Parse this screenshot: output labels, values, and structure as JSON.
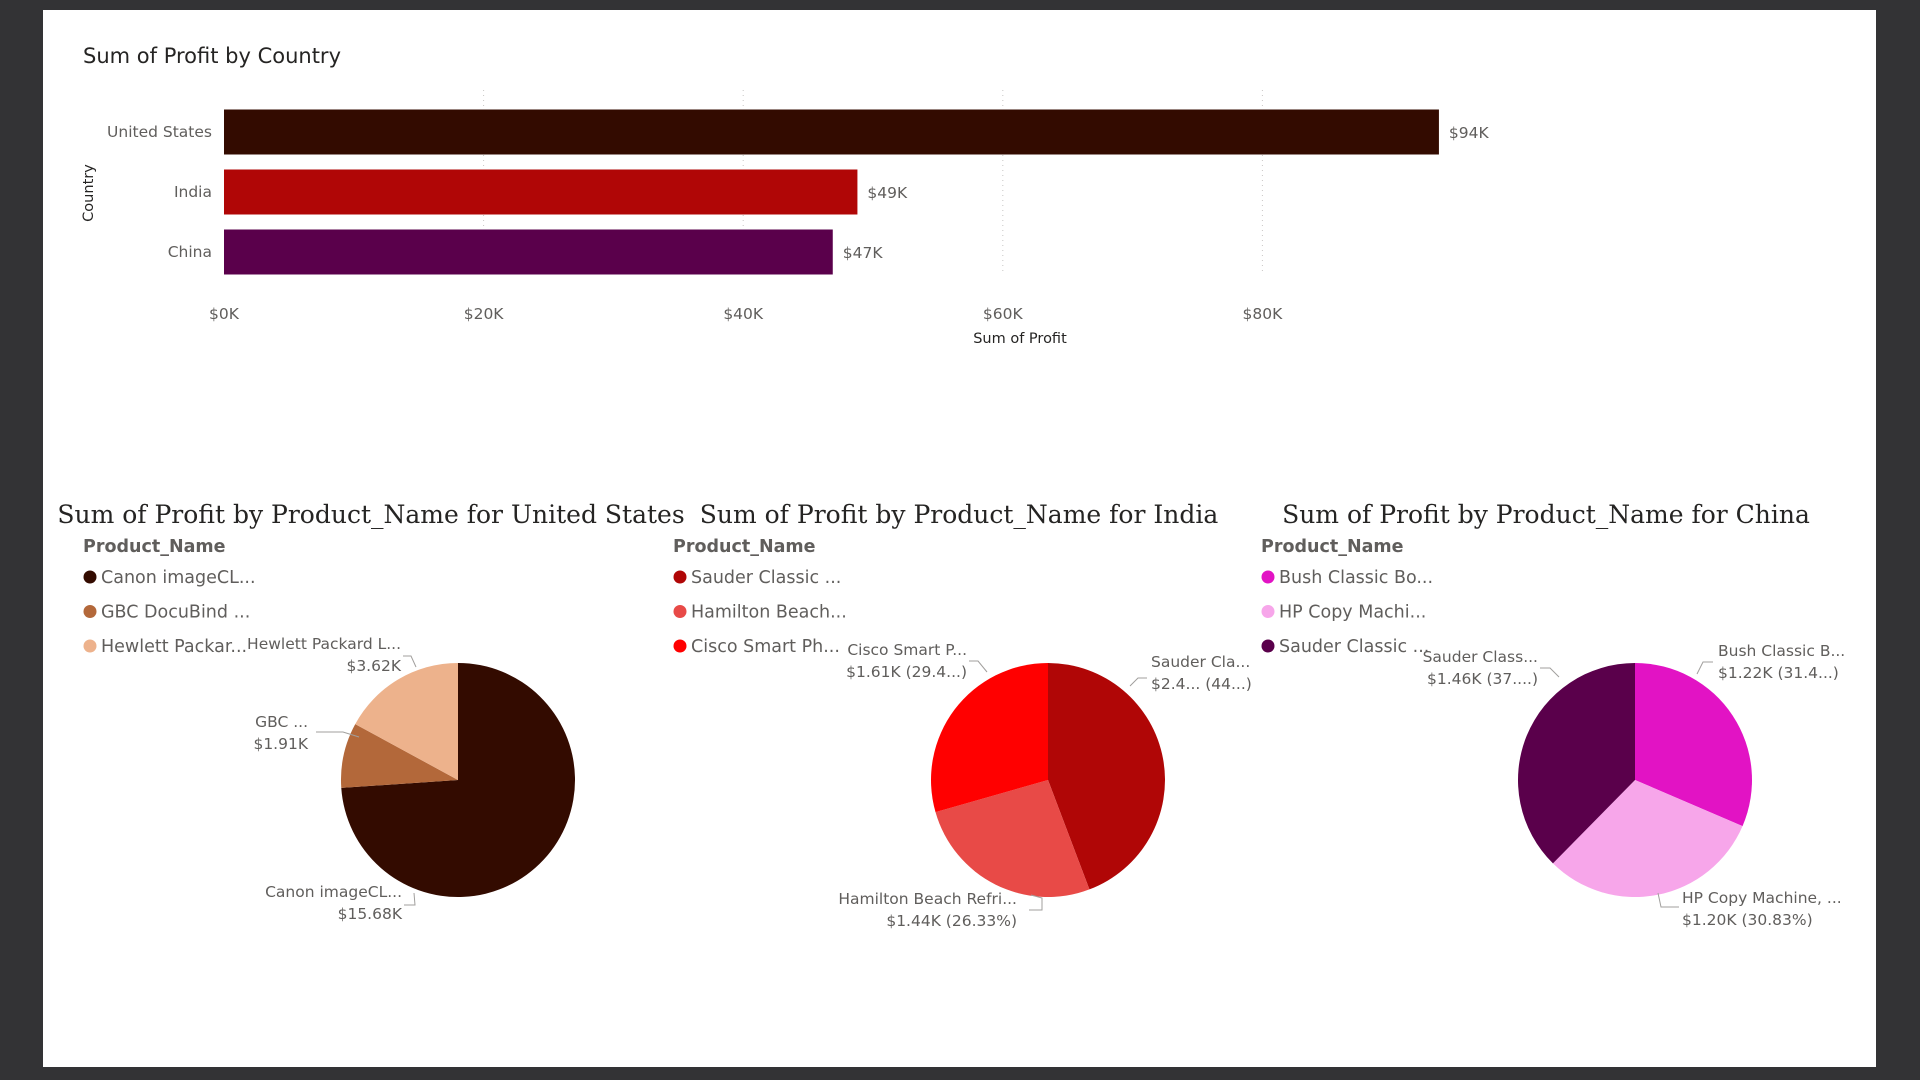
{
  "chart_data": [
    {
      "type": "bar",
      "orientation": "horizontal",
      "title": "Sum of Profit by Country",
      "xlabel": "Sum of Profit",
      "ylabel": "Country",
      "categories": [
        "United States",
        "India",
        "China"
      ],
      "values": [
        93600,
        48800,
        46900
      ],
      "data_labels": [
        "$94K",
        "$49K",
        "$47K"
      ],
      "colors": [
        "#330b00",
        "#b00606",
        "#5a004b"
      ],
      "xlim": [
        0,
        100000
      ],
      "ticks": [
        0,
        20000,
        40000,
        60000,
        80000
      ],
      "tick_labels": [
        "$0K",
        "$20K",
        "$40K",
        "$60K",
        "$80K"
      ],
      "grid": true
    },
    {
      "type": "pie",
      "title": "Sum of Profit by Product_Name for United States",
      "legend_title": "Product_Name",
      "legend": [
        "Canon imageCL...",
        "GBC DocuBind ...",
        "Hewlett Packar..."
      ],
      "values": [
        15680,
        1910,
        3620
      ],
      "colors": [
        "#330b00",
        "#b3683a",
        "#edb28c"
      ],
      "labels": [
        {
          "name": "Canon imageCL...",
          "value": "$15.68K"
        },
        {
          "name": "GBC ...",
          "value": "$1.91K"
        },
        {
          "name": "Hewlett Packard L...",
          "value": "$3.62K"
        }
      ]
    },
    {
      "type": "pie",
      "title": "Sum of Profit by Product_Name for India",
      "legend_title": "Product_Name",
      "legend": [
        "Sauder Classic ...",
        "Hamilton Beach...",
        "Cisco Smart Ph..."
      ],
      "values": [
        2420,
        1440,
        1610
      ],
      "colors": [
        "#b00606",
        "#e84a47",
        "#ff0000"
      ],
      "labels": [
        {
          "name": "Sauder Cla...",
          "value": "$2.4... (44...)"
        },
        {
          "name": "Hamilton Beach Refri...",
          "value": "$1.44K (26.33%)"
        },
        {
          "name": "Cisco Smart P...",
          "value": "$1.61K (29.4...)"
        }
      ]
    },
    {
      "type": "pie",
      "title": "Sum of Profit by Product_Name for China",
      "legend_title": "Product_Name",
      "legend": [
        "Bush Classic Bo...",
        "HP Copy Machi...",
        "Sauder Classic ..."
      ],
      "values": [
        1220,
        1200,
        1460
      ],
      "colors": [
        "#e213c4",
        "#f7a6ea",
        "#5a004b"
      ],
      "labels": [
        {
          "name": "Bush Classic B...",
          "value": "$1.22K (31.4...)"
        },
        {
          "name": "HP Copy Machine, ...",
          "value": "$1.20K (30.83%)"
        },
        {
          "name": "Sauder Class...",
          "value": "$1.46K (37....)"
        }
      ]
    }
  ]
}
